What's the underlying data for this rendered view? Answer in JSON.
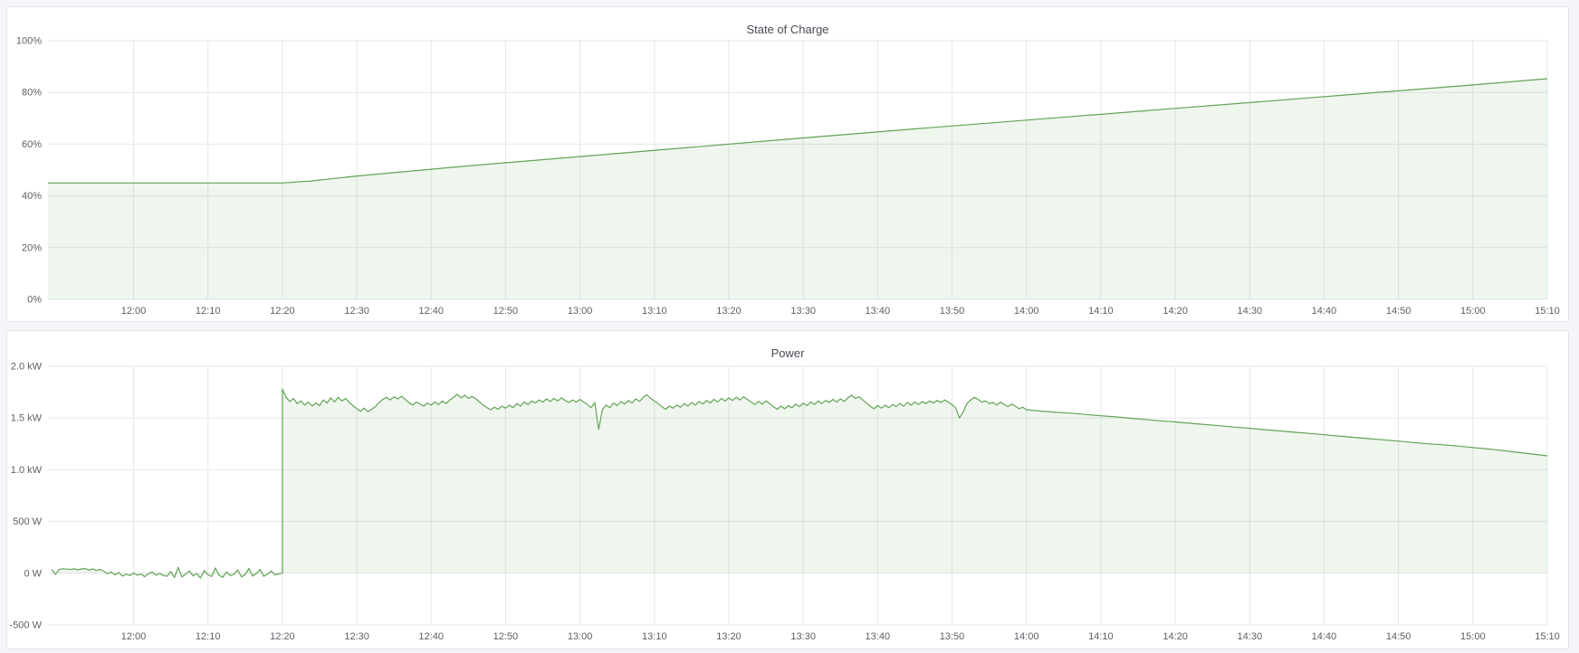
{
  "app": {
    "kind": "monitoring-dashboard"
  },
  "theme": {
    "page_bg": "#f4f5f9",
    "panel_bg": "#ffffff",
    "panel_border": "#e0e3e7",
    "title_color": "#464c54",
    "axis_text_color": "#5c6066",
    "grid_color": "#e6e7e9",
    "series_color": "#62a356",
    "series_fill": "rgba(98,163,86,0.10)"
  },
  "chart_data": [
    {
      "type": "area",
      "title": "State of Charge",
      "xlabel": "",
      "ylabel": "",
      "legend_position": "none",
      "grid": true,
      "x_encoding": "minutes-since-midnight",
      "xlim": [
        708.5,
        910
      ],
      "ylim": [
        0,
        100
      ],
      "baseline": 0,
      "x_tick_values": [
        720,
        730,
        740,
        750,
        760,
        770,
        780,
        790,
        800,
        810,
        820,
        830,
        840,
        850,
        860,
        870,
        880,
        890,
        900,
        910
      ],
      "x_tick_labels": [
        "12:00",
        "12:10",
        "12:20",
        "12:30",
        "12:40",
        "12:50",
        "13:00",
        "13:10",
        "13:20",
        "13:30",
        "13:40",
        "13:50",
        "14:00",
        "14:10",
        "14:20",
        "14:30",
        "14:40",
        "14:50",
        "15:00",
        "15:10"
      ],
      "y_tick_values": [
        0,
        20,
        40,
        60,
        80,
        100
      ],
      "y_tick_labels": [
        "0%",
        "20%",
        "40%",
        "60%",
        "80%",
        "100%"
      ],
      "series": [
        {
          "name": "State of Charge",
          "unit": "percent",
          "segments": [
            {
              "points": [
                [
                  708.5,
                  45.0
                ],
                [
                  740,
                  45.0
                ],
                [
                  744,
                  45.8
                ],
                [
                  750,
                  47.7
                ],
                [
                  765,
                  51.6
                ],
                [
                  780,
                  55.2
                ],
                [
                  795,
                  58.8
                ],
                [
                  810,
                  62.4
                ],
                [
                  825,
                  65.9
                ],
                [
                  840,
                  69.3
                ],
                [
                  855,
                  72.7
                ],
                [
                  870,
                  76.1
                ],
                [
                  885,
                  79.5
                ],
                [
                  900,
                  82.9
                ],
                [
                  910,
                  85.3
                ]
              ]
            }
          ]
        }
      ]
    },
    {
      "type": "area",
      "title": "Power",
      "xlabel": "",
      "ylabel": "",
      "legend_position": "none",
      "grid": true,
      "x_encoding": "minutes-since-midnight",
      "xlim": [
        708.5,
        910
      ],
      "ylim": [
        -500,
        2000
      ],
      "baseline": 0,
      "x_tick_values": [
        720,
        730,
        740,
        750,
        760,
        770,
        780,
        790,
        800,
        810,
        820,
        830,
        840,
        850,
        860,
        870,
        880,
        890,
        900,
        910
      ],
      "x_tick_labels": [
        "12:00",
        "12:10",
        "12:20",
        "12:30",
        "12:40",
        "12:50",
        "13:00",
        "13:10",
        "13:20",
        "13:30",
        "13:40",
        "13:50",
        "14:00",
        "14:10",
        "14:20",
        "14:30",
        "14:40",
        "14:50",
        "15:00",
        "15:10"
      ],
      "y_tick_values": [
        -500,
        0,
        500,
        1000,
        1500,
        2000
      ],
      "y_tick_labels": [
        "-500 W",
        "0 W",
        "500 W",
        "1.0 kW",
        "1.5 kW",
        "2.0 kW"
      ],
      "series": [
        {
          "name": "Power",
          "unit": "watts",
          "segments": [
            {
              "t0": 709,
              "dt": 0.5,
              "values": [
                38,
                -12,
                36,
                44,
                40,
                37,
                43,
                34,
                41,
                46,
                30,
                42,
                26,
                38,
                20,
                -6,
                12,
                -16,
                6,
                -28,
                -10,
                -24,
                2,
                -20,
                -8,
                -34,
                -4,
                12,
                -18,
                -2,
                -22,
                -30,
                16,
                -42,
                58,
                -36,
                -10,
                22,
                -26,
                -4,
                -46,
                26,
                -14,
                -32,
                52,
                -20,
                -40,
                12,
                -24,
                -8,
                32,
                -36,
                -12,
                46,
                -28,
                -4,
                36,
                -30,
                -10,
                22,
                -16,
                -6,
                2
              ]
            },
            {
              "t0": 740,
              "dt": 0.5,
              "values": [
                1780,
                1700,
                1660,
                1690,
                1640,
                1665,
                1625,
                1655,
                1615,
                1645,
                1620,
                1675,
                1645,
                1695,
                1655,
                1700,
                1665,
                1690,
                1650,
                1620,
                1590,
                1565,
                1595,
                1560,
                1585,
                1610,
                1650,
                1680,
                1700,
                1675,
                1705,
                1685,
                1710,
                1680,
                1650,
                1625,
                1655,
                1635,
                1615,
                1645,
                1625,
                1655,
                1630,
                1665,
                1640,
                1675,
                1700,
                1730,
                1695,
                1720,
                1690,
                1710,
                1685,
                1655,
                1625,
                1600,
                1580,
                1605,
                1585,
                1615,
                1595,
                1625,
                1600,
                1640,
                1615,
                1655,
                1630,
                1665,
                1645,
                1675,
                1655,
                1685,
                1660,
                1690,
                1665,
                1695,
                1670,
                1650,
                1675,
                1655,
                1680,
                1655,
                1630,
                1600,
                1650,
                1390,
                1580,
                1625,
                1600,
                1645,
                1620,
                1660,
                1635,
                1670,
                1645,
                1685,
                1660,
                1700,
                1725,
                1690,
                1665,
                1640,
                1610,
                1585,
                1615,
                1595,
                1625,
                1605,
                1640,
                1615,
                1650,
                1625,
                1660,
                1635,
                1670,
                1645,
                1680,
                1655,
                1690,
                1665,
                1695,
                1670,
                1700,
                1675,
                1705,
                1680,
                1655,
                1630,
                1660,
                1635,
                1665,
                1640,
                1610,
                1585,
                1615,
                1590,
                1620,
                1600,
                1635,
                1610,
                1645,
                1620,
                1655,
                1630,
                1665,
                1640,
                1670,
                1650,
                1680,
                1655,
                1685,
                1660,
                1695,
                1720,
                1690,
                1705,
                1675,
                1645,
                1615,
                1590,
                1620,
                1595,
                1625,
                1600,
                1630,
                1610,
                1640,
                1615,
                1650,
                1625,
                1655,
                1630,
                1660,
                1640,
                1665,
                1645,
                1670,
                1650,
                1675,
                1655,
                1630,
                1600,
                1500,
                1560,
                1640,
                1675,
                1700,
                1680,
                1655,
                1665,
                1640,
                1650,
                1625,
                1655,
                1630,
                1610,
                1635,
                1615,
                1590,
                1605,
                1580
              ]
            },
            {
              "points": [
                [
                  842,
                  1566
                ],
                [
                  844,
                  1555
                ],
                [
                  846,
                  1547
                ],
                [
                  848,
                  1534
                ],
                [
                  850,
                  1522
                ],
                [
                  852,
                  1511
                ],
                [
                  854,
                  1497
                ],
                [
                  856,
                  1486
                ],
                [
                  858,
                  1473
                ],
                [
                  860,
                  1462
                ],
                [
                  862,
                  1449
                ],
                [
                  864,
                  1437
                ],
                [
                  866,
                  1426
                ],
                [
                  868,
                  1412
                ],
                [
                  870,
                  1401
                ],
                [
                  872,
                  1387
                ],
                [
                  874,
                  1376
                ],
                [
                  876,
                  1363
                ],
                [
                  878,
                  1351
                ],
                [
                  880,
                  1338
                ],
                [
                  882,
                  1326
                ],
                [
                  884,
                  1313
                ],
                [
                  886,
                  1301
                ],
                [
                  888,
                  1289
                ],
                [
                  890,
                  1277
                ],
                [
                  892,
                  1263
                ],
                [
                  894,
                  1251
                ],
                [
                  896,
                  1241
                ],
                [
                  898,
                  1229
                ],
                [
                  900,
                  1215
                ],
                [
                  902,
                  1201
                ],
                [
                  904,
                  1186
                ],
                [
                  906,
                  1169
                ],
                [
                  908,
                  1152
                ],
                [
                  910,
                  1135
                ]
              ]
            }
          ]
        }
      ]
    }
  ]
}
